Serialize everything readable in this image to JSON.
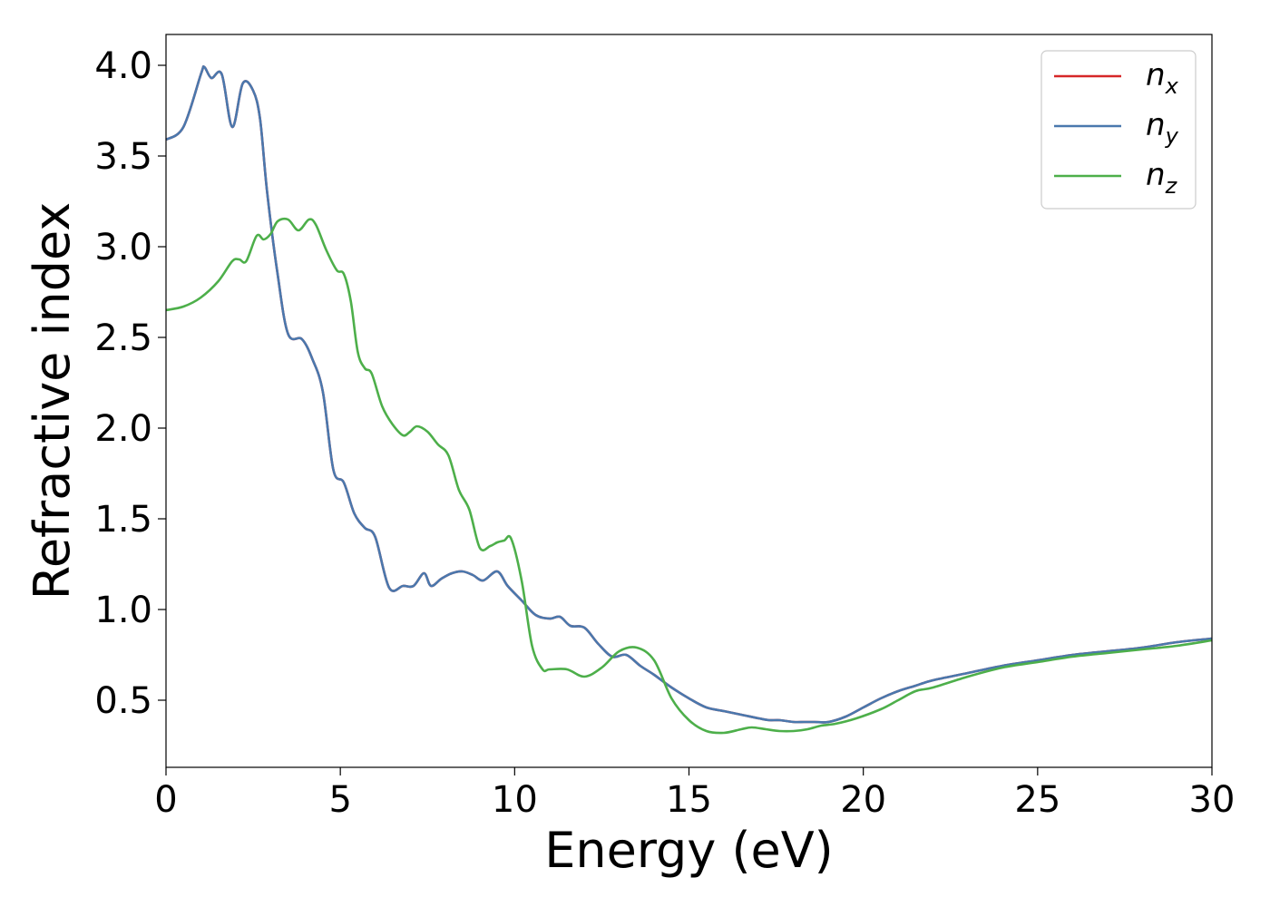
{
  "chart_data": {
    "type": "line",
    "xlabel": "Energy (eV)",
    "ylabel": "Refractive index",
    "xlim": [
      0,
      30
    ],
    "ylim": [
      0.13,
      4.17
    ],
    "xticks": [
      0,
      5,
      10,
      15,
      20,
      25,
      30
    ],
    "xtick_labels": [
      "0",
      "5",
      "10",
      "15",
      "20",
      "25",
      "30"
    ],
    "yticks": [
      0.5,
      1.0,
      1.5,
      2.0,
      2.5,
      3.0,
      3.5,
      4.0
    ],
    "ytick_labels": [
      "0.5",
      "1.0",
      "1.5",
      "2.0",
      "2.5",
      "3.0",
      "3.5",
      "4.0"
    ],
    "grid": false,
    "legend_position": "top-right",
    "series": [
      {
        "name": "n",
        "subscript": "x",
        "color": "#d62728",
        "x": [
          0,
          0.5,
          1.0,
          1.1,
          1.3,
          1.6,
          1.9,
          2.2,
          2.5,
          2.7,
          2.9,
          3.2,
          3.5,
          3.9,
          4.2,
          4.5,
          4.8,
          5.1,
          5.4,
          5.7,
          6.0,
          6.4,
          6.8,
          7.1,
          7.4,
          7.6,
          7.9,
          8.2,
          8.5,
          8.8,
          9.1,
          9.5,
          9.8,
          10.2,
          10.6,
          11.0,
          11.3,
          11.6,
          12.0,
          12.4,
          12.8,
          13.2,
          13.6,
          14.0,
          14.5,
          15.0,
          15.5,
          16.0,
          16.5,
          17.0,
          17.3,
          17.6,
          18.0,
          18.3,
          18.6,
          19.0,
          19.5,
          20.0,
          20.5,
          21.0,
          21.5,
          22.0,
          23.0,
          24.0,
          25.0,
          26.0,
          27.0,
          28.0,
          29.0,
          30.0
        ],
        "y": [
          3.59,
          3.66,
          3.95,
          3.99,
          3.93,
          3.95,
          3.66,
          3.9,
          3.86,
          3.7,
          3.3,
          2.85,
          2.52,
          2.49,
          2.38,
          2.2,
          1.77,
          1.7,
          1.53,
          1.45,
          1.4,
          1.12,
          1.13,
          1.13,
          1.2,
          1.13,
          1.17,
          1.2,
          1.21,
          1.19,
          1.16,
          1.21,
          1.13,
          1.05,
          0.97,
          0.95,
          0.96,
          0.91,
          0.9,
          0.81,
          0.74,
          0.75,
          0.69,
          0.64,
          0.57,
          0.51,
          0.46,
          0.44,
          0.42,
          0.4,
          0.39,
          0.39,
          0.38,
          0.38,
          0.38,
          0.38,
          0.41,
          0.46,
          0.51,
          0.55,
          0.58,
          0.61,
          0.65,
          0.69,
          0.72,
          0.75,
          0.77,
          0.79,
          0.82,
          0.84
        ]
      },
      {
        "name": "n",
        "subscript": "y",
        "color": "#4a78ad",
        "x": [
          0,
          0.5,
          1.0,
          1.1,
          1.3,
          1.6,
          1.9,
          2.2,
          2.5,
          2.7,
          2.9,
          3.2,
          3.5,
          3.9,
          4.2,
          4.5,
          4.8,
          5.1,
          5.4,
          5.7,
          6.0,
          6.4,
          6.8,
          7.1,
          7.4,
          7.6,
          7.9,
          8.2,
          8.5,
          8.8,
          9.1,
          9.5,
          9.8,
          10.2,
          10.6,
          11.0,
          11.3,
          11.6,
          12.0,
          12.4,
          12.8,
          13.2,
          13.6,
          14.0,
          14.5,
          15.0,
          15.5,
          16.0,
          16.5,
          17.0,
          17.3,
          17.6,
          18.0,
          18.3,
          18.6,
          19.0,
          19.5,
          20.0,
          20.5,
          21.0,
          21.5,
          22.0,
          23.0,
          24.0,
          25.0,
          26.0,
          27.0,
          28.0,
          29.0,
          30.0
        ],
        "y": [
          3.59,
          3.66,
          3.95,
          3.99,
          3.93,
          3.95,
          3.66,
          3.9,
          3.86,
          3.7,
          3.3,
          2.85,
          2.52,
          2.49,
          2.38,
          2.2,
          1.77,
          1.7,
          1.53,
          1.45,
          1.4,
          1.12,
          1.13,
          1.13,
          1.2,
          1.13,
          1.17,
          1.2,
          1.21,
          1.19,
          1.16,
          1.21,
          1.13,
          1.05,
          0.97,
          0.95,
          0.96,
          0.91,
          0.9,
          0.81,
          0.74,
          0.75,
          0.69,
          0.64,
          0.57,
          0.51,
          0.46,
          0.44,
          0.42,
          0.4,
          0.39,
          0.39,
          0.38,
          0.38,
          0.38,
          0.38,
          0.41,
          0.46,
          0.51,
          0.55,
          0.58,
          0.61,
          0.65,
          0.69,
          0.72,
          0.75,
          0.77,
          0.79,
          0.82,
          0.84
        ]
      },
      {
        "name": "n",
        "subscript": "z",
        "color": "#4daf4a",
        "x": [
          0,
          0.5,
          1.0,
          1.5,
          1.9,
          2.1,
          2.3,
          2.6,
          2.8,
          3.0,
          3.2,
          3.5,
          3.8,
          4.1,
          4.3,
          4.6,
          4.9,
          5.1,
          5.3,
          5.5,
          5.7,
          5.9,
          6.2,
          6.5,
          6.8,
          7.0,
          7.2,
          7.5,
          7.8,
          8.1,
          8.4,
          8.7,
          9.0,
          9.3,
          9.5,
          9.7,
          9.9,
          10.2,
          10.5,
          10.8,
          11.0,
          11.5,
          12.0,
          12.5,
          13.0,
          13.5,
          14.0,
          14.5,
          15.0,
          15.5,
          16.0,
          16.5,
          16.8,
          17.2,
          17.6,
          18.0,
          18.4,
          18.8,
          19.2,
          19.8,
          20.5,
          21.0,
          21.5,
          22.0,
          23.0,
          24.0,
          25.0,
          26.0,
          27.0,
          28.0,
          29.0,
          30.0
        ],
        "y": [
          2.65,
          2.67,
          2.72,
          2.81,
          2.92,
          2.93,
          2.92,
          3.06,
          3.04,
          3.07,
          3.14,
          3.15,
          3.09,
          3.15,
          3.12,
          2.98,
          2.87,
          2.85,
          2.7,
          2.42,
          2.33,
          2.3,
          2.12,
          2.02,
          1.96,
          1.98,
          2.01,
          1.98,
          1.91,
          1.85,
          1.66,
          1.55,
          1.34,
          1.35,
          1.37,
          1.38,
          1.39,
          1.16,
          0.8,
          0.67,
          0.67,
          0.67,
          0.63,
          0.68,
          0.77,
          0.79,
          0.72,
          0.51,
          0.39,
          0.33,
          0.32,
          0.34,
          0.35,
          0.34,
          0.33,
          0.33,
          0.34,
          0.36,
          0.37,
          0.4,
          0.45,
          0.5,
          0.55,
          0.57,
          0.63,
          0.68,
          0.71,
          0.74,
          0.76,
          0.78,
          0.8,
          0.83
        ]
      }
    ]
  }
}
